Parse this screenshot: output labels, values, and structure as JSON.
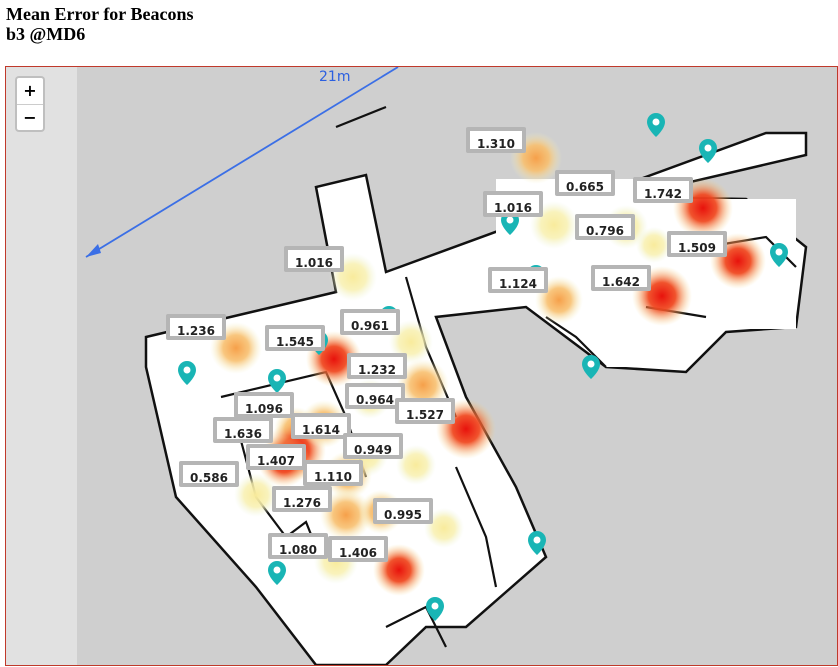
{
  "title": {
    "line1": "Mean Error for Beacons",
    "line2": "b3 @MD6"
  },
  "zoom": {
    "in_label": "+",
    "out_label": "−"
  },
  "scale": {
    "label": "21m",
    "color": "#3b6fe6"
  },
  "colors": {
    "pin": "#19b5b5",
    "heat_low": "#f7f0a0",
    "heat_mid": "#f7a040",
    "heat_high": "#e8160c",
    "frame_border": "#c0392b"
  },
  "labels": [
    {
      "value": "1.310"
    },
    {
      "value": "0.665"
    },
    {
      "value": "1.742"
    },
    {
      "value": "1.016"
    },
    {
      "value": "0.796"
    },
    {
      "value": "1.509"
    },
    {
      "value": "1.124"
    },
    {
      "value": "1.642"
    },
    {
      "value": "1.016"
    },
    {
      "value": "1.236"
    },
    {
      "value": "1.545"
    },
    {
      "value": "0.961"
    },
    {
      "value": "1.232"
    },
    {
      "value": "0.964"
    },
    {
      "value": "1.527"
    },
    {
      "value": "1.096"
    },
    {
      "value": "1.636"
    },
    {
      "value": "1.614"
    },
    {
      "value": "0.949"
    },
    {
      "value": "1.407"
    },
    {
      "value": "1.110"
    },
    {
      "value": "0.586"
    },
    {
      "value": "1.276"
    },
    {
      "value": "0.995"
    },
    {
      "value": "1.080"
    },
    {
      "value": "1.406"
    }
  ],
  "pin_icon": "map-marker-icon"
}
